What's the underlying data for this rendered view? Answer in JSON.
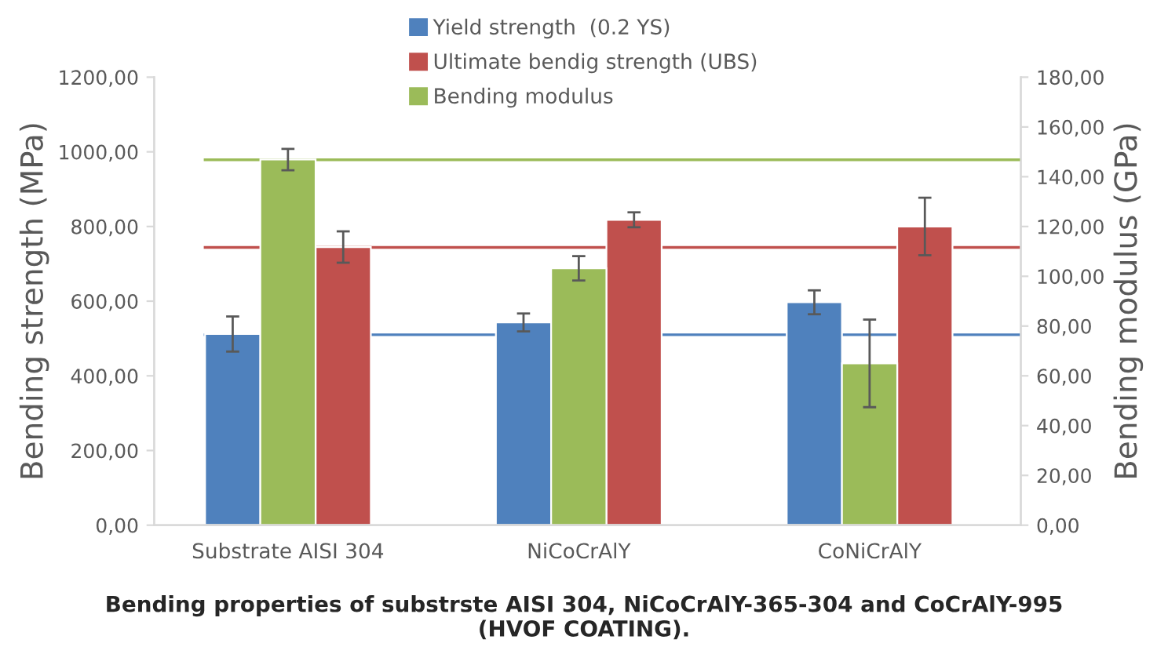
{
  "chart_data": {
    "type": "bar",
    "title": "Bending properties of substrste AISI 304, NiCoCrAlY-365-304 and CoCrAlY-995\n(HVOF COATING).",
    "ylabel": "Bending strength (MPa)",
    "y2label": "Bending modulus (GPa)",
    "categories": [
      "Substrate AISI 304",
      "NiCoCrAlY",
      "CoNiCrAlY"
    ],
    "series": [
      {
        "name": "Yield strength  (0.2 YS)",
        "color": "#4f81bd",
        "values": [
          512,
          543,
          597
        ],
        "errors": [
          47,
          24,
          32
        ]
      },
      {
        "name": "Bending modulus",
        "color": "#9bbb59",
        "axis": "y2",
        "values": [
          146.9,
          103.2,
          65.0
        ],
        "errors": [
          4.3,
          4.9,
          17.6
        ]
      },
      {
        "name": "Ultimate bendig strength (UBS)",
        "color": "#c0504d",
        "values": [
          745,
          818,
          800
        ],
        "errors": [
          42,
          20,
          77
        ]
      }
    ],
    "ylim": [
      0,
      1200
    ],
    "yticks": [
      {
        "value": 0,
        "label": "0,00"
      },
      {
        "value": 200,
        "label": "200,00"
      },
      {
        "value": 400,
        "label": "400,00"
      },
      {
        "value": 600,
        "label": "600,00"
      },
      {
        "value": 800,
        "label": "800,00"
      },
      {
        "value": 1000,
        "label": "1000,00"
      },
      {
        "value": 1200,
        "label": "1200,00"
      }
    ],
    "y2lim": [
      0,
      180
    ],
    "y2ticks": [
      {
        "value": 0,
        "label": "0,00"
      },
      {
        "value": 20,
        "label": "20,00"
      },
      {
        "value": 40,
        "label": "40,00"
      },
      {
        "value": 60,
        "label": "60,00"
      },
      {
        "value": 80,
        "label": "80,00"
      },
      {
        "value": 100,
        "label": "100,00"
      },
      {
        "value": 120,
        "label": "120,00"
      },
      {
        "value": 140,
        "label": "140,00"
      },
      {
        "value": 160,
        "label": "160,00"
      },
      {
        "value": 180,
        "label": "180,00"
      }
    ],
    "ref_lines": [
      {
        "axis": "y2",
        "value": 146.8,
        "color": "#9bbb59"
      },
      {
        "axis": "y",
        "value": 744,
        "color": "#c0504d"
      },
      {
        "axis": "y",
        "value": 510,
        "color": "#4f81bd"
      }
    ],
    "grid": false,
    "legend": "top"
  }
}
